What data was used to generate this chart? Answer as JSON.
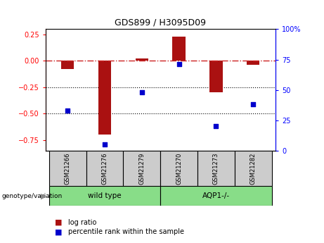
{
  "title": "GDS899 / H3095D09",
  "samples": [
    "GSM21266",
    "GSM21276",
    "GSM21279",
    "GSM21270",
    "GSM21273",
    "GSM21282"
  ],
  "log_ratio": [
    -0.08,
    -0.7,
    0.02,
    0.23,
    -0.3,
    -0.04
  ],
  "percentile_rank": [
    33,
    5,
    48,
    71,
    20,
    38
  ],
  "bar_color": "#AA1111",
  "scatter_color": "#0000CC",
  "ylim_left": [
    -0.85,
    0.3
  ],
  "ylim_right": [
    0,
    100
  ],
  "yticks_left": [
    -0.75,
    -0.5,
    -0.25,
    0,
    0.25
  ],
  "yticks_right": [
    0,
    25,
    50,
    75,
    100
  ],
  "ytick_right_labels": [
    "0",
    "25",
    "50",
    "75",
    "100%"
  ],
  "dotted_lines": [
    -0.25,
    -0.5
  ],
  "bar_width": 0.35,
  "group_box_color": "#cccccc",
  "green_color": "#88DD88",
  "group1_label": "wild type",
  "group2_label": "AQP1-/-",
  "genotype_label": "genotype/variation",
  "legend_log_ratio": "log ratio",
  "legend_percentile": "percentile rank within the sample"
}
